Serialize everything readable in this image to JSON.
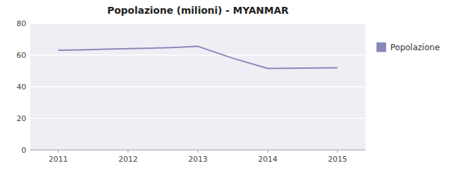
{
  "chart_data": {
    "type": "line",
    "title": "Popolazione (milioni) - MYANMAR",
    "x": [
      2011,
      2011.33,
      2011.67,
      2012,
      2012.33,
      2012.67,
      2013,
      2013.5,
      2014,
      2014.5,
      2015
    ],
    "series": [
      {
        "name": "Popolazione",
        "color": "#8888bb",
        "values": [
          63.0,
          63.3,
          63.7,
          64.0,
          64.4,
          64.8,
          65.5,
          58.0,
          51.5,
          51.7,
          52.0
        ]
      }
    ],
    "xlim": [
      2010.6,
      2015.4
    ],
    "ylim": [
      0,
      80
    ],
    "xticks": [
      2011,
      2012,
      2013,
      2014,
      2015
    ],
    "yticks": [
      0,
      20,
      40,
      60,
      80
    ],
    "grid": true,
    "legend": "right"
  }
}
